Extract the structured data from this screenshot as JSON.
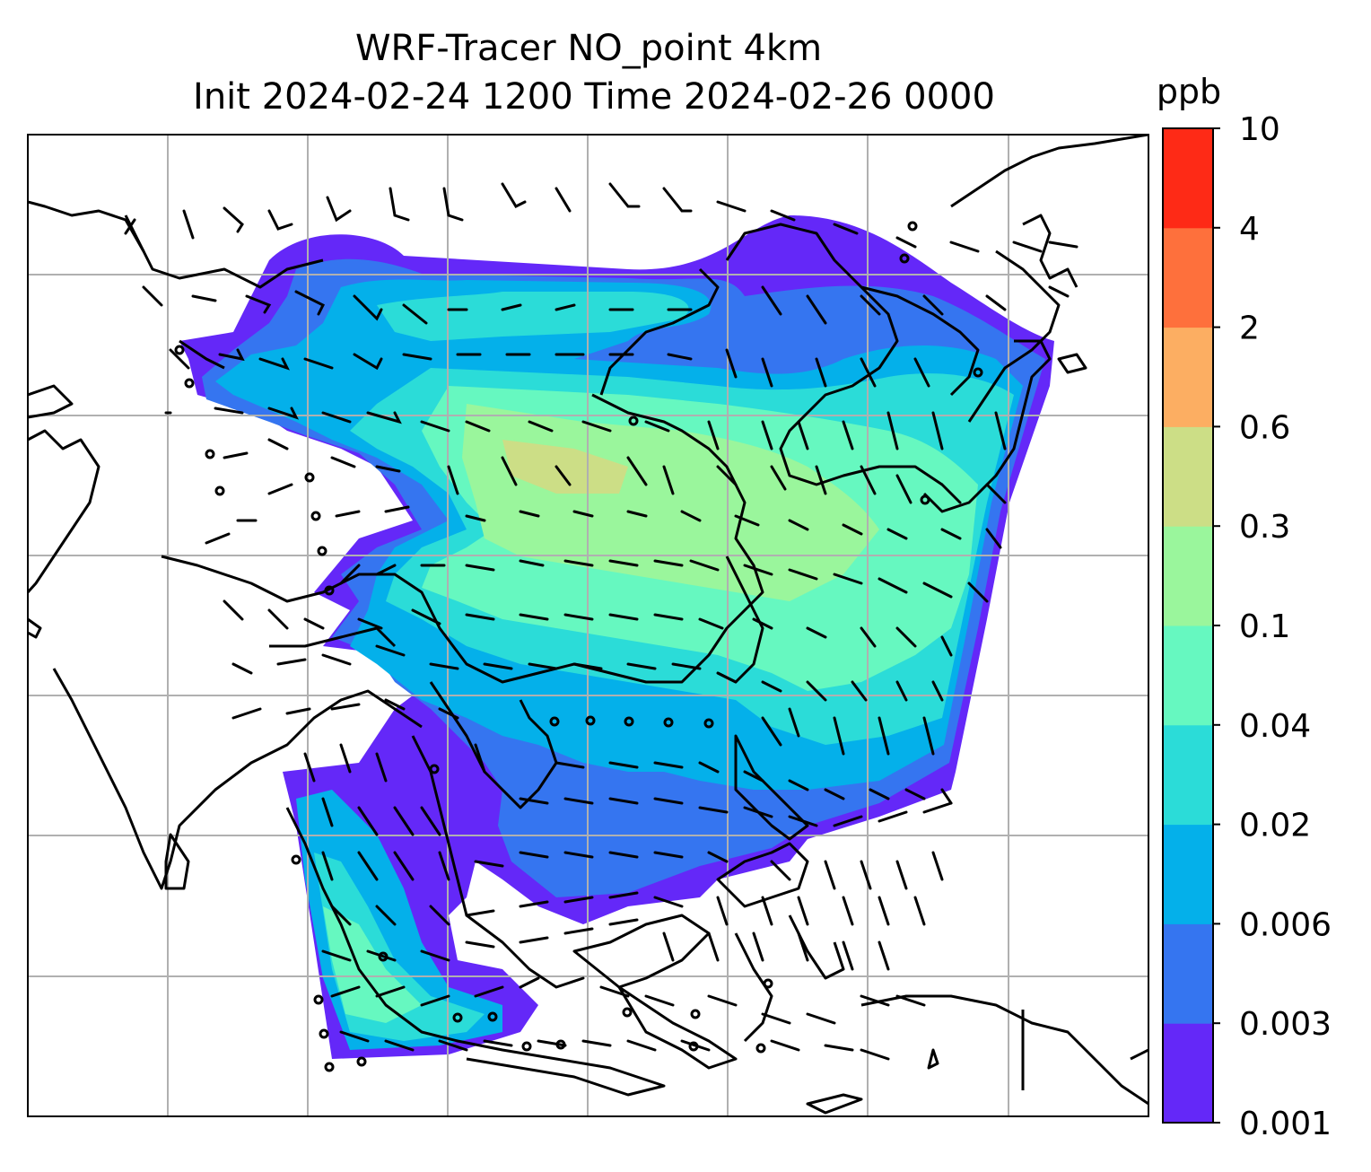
{
  "chart_data": {
    "type": "heatmap",
    "title": "WRF-Tracer NO_point 4km",
    "subtitle": "Init 2024-02-24 1200 Time 2024-02-26 0000",
    "colorbar": {
      "units": "ppb",
      "levels": [
        "0.001",
        "0.003",
        "0.006",
        "0.02",
        "0.04",
        "0.1",
        "0.3",
        "0.6",
        "2",
        "4",
        "10"
      ],
      "colors": [
        "#6428f8",
        "#3575f0",
        "#04b0ea",
        "#2bdcd8",
        "#66f8c0",
        "#9af69c",
        "#ccde86",
        "#fcae62",
        "#fe703c",
        "#fe2a16"
      ]
    },
    "map": {
      "gridlines": true,
      "gridline_color": "#b0b0b0",
      "coastline_color": "#000000",
      "wind_barbs": true
    }
  }
}
